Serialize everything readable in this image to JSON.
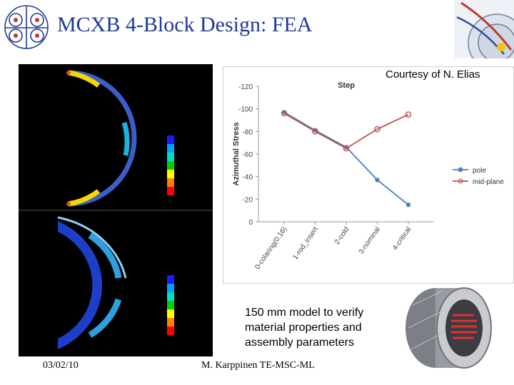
{
  "slide": {
    "title": "MCXB 4-Block Design: FEA",
    "courtesy": "Courtesy of N. Elias",
    "caption": "150 mm model to verify\nmaterial properties and\nassembly parameters",
    "footer_date": "03/02/10",
    "footer_author": "M. Karppinen TE-MSC-ML"
  },
  "colors": {
    "title": "#1f3a93",
    "pole": "#4f81bd",
    "mid_plane": "#c0504d"
  },
  "chart_data": {
    "type": "line",
    "title": "Step",
    "xlabel": "",
    "ylabel": "Azimuthal Stress",
    "categories": [
      "0-colaring(0.16)",
      "1-rod_insert",
      "2-cold",
      "3-nominal",
      "4-critical"
    ],
    "ylim": [
      -120,
      0
    ],
    "yticks": [
      -120,
      -100,
      -80,
      -60,
      -40,
      -20,
      0
    ],
    "grid": false,
    "legend": "right",
    "series": [
      {
        "name": "pole",
        "values": [
          -97,
          -81,
          -66,
          -37,
          -15
        ]
      },
      {
        "name": "mid-plane",
        "values": [
          -96,
          -80,
          -65,
          -82,
          -95
        ]
      }
    ]
  }
}
